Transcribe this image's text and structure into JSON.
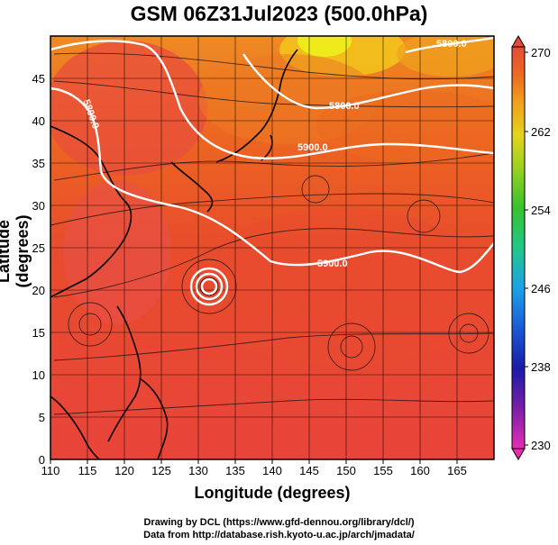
{
  "title": "GSM 06Z31Jul2023 (500.0hPa)",
  "axes": {
    "xlabel": "Longitude (degrees)",
    "ylabel": "Latitude  (degrees)",
    "xticks": [
      "110",
      "115",
      "120",
      "125",
      "130",
      "135",
      "140",
      "145",
      "150",
      "155",
      "160",
      "165"
    ],
    "yticks": [
      "0",
      "5",
      "10",
      "15",
      "20",
      "25",
      "30",
      "35",
      "40",
      "45"
    ],
    "xlim": [
      110,
      170
    ],
    "ylim": [
      0,
      50
    ]
  },
  "colorbar": {
    "ticks": [
      "270",
      "262",
      "254",
      "246",
      "238",
      "230"
    ],
    "range": [
      230,
      270
    ],
    "colors": [
      "#e62db4",
      "#7a1fa8",
      "#1c1aa8",
      "#1a5ad8",
      "#1aa3e6",
      "#22c78a",
      "#38c22c",
      "#9bd21e",
      "#e4d31c",
      "#f0a21c",
      "#ec6a20",
      "#e64a3a"
    ]
  },
  "contours": [
    {
      "label": "5800.0"
    },
    {
      "label": "5900.0"
    },
    {
      "label": "5800.0"
    },
    {
      "label": "5800.0"
    },
    {
      "label": "5900.0"
    }
  ],
  "credits": {
    "line1": "Drawing by DCL (https://www.gfd-dennou.org/library/dcl/)",
    "line2": "Data from http://database.rish.kyoto-u.ac.jp/arch/jmadata/"
  }
}
